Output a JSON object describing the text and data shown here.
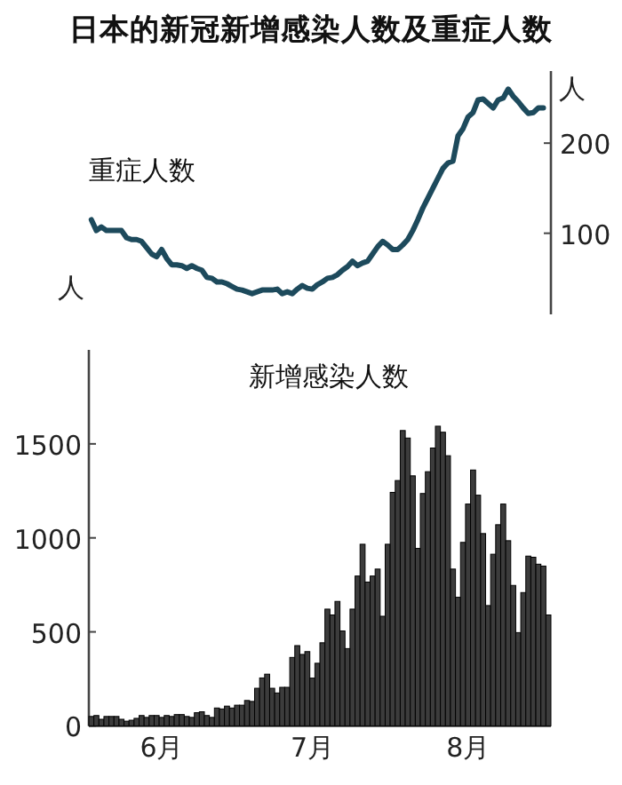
{
  "chart_data": [
    {
      "type": "line",
      "title": "日本的新冠新增感染人数及重症人数",
      "ylabel": "人",
      "categories": [
        null,
        null,
        null,
        null,
        null,
        null,
        null,
        null,
        null,
        null,
        null,
        null,
        null,
        null,
        null,
        null,
        null,
        null,
        null,
        null,
        null,
        null,
        null,
        null,
        null,
        null,
        null,
        null,
        null,
        null,
        null,
        null,
        null,
        null,
        null,
        null,
        null,
        null,
        null,
        null,
        null,
        null,
        null,
        null,
        null,
        null,
        null,
        null,
        null,
        null,
        null,
        null,
        null,
        null,
        null,
        null,
        null,
        null,
        null,
        null,
        null,
        null,
        null,
        null,
        null,
        null,
        null,
        null,
        null,
        null,
        null,
        null,
        null,
        null,
        null,
        null,
        null,
        null,
        null,
        null,
        null,
        null,
        null,
        null,
        null,
        null,
        null,
        null,
        null,
        null,
        null,
        null
      ],
      "tick_labels": "y",
      "ylim": [
        10,
        280
      ],
      "yticks": [
        100,
        200
      ],
      "series": [
        {
          "name": "重症人数",
          "color": "#1d4a5c",
          "values": [
            115,
            103,
            107,
            103,
            103,
            103,
            103,
            95,
            93,
            93,
            91,
            84,
            77,
            74,
            82,
            72,
            65,
            65,
            64,
            61,
            64,
            61,
            59,
            51,
            50,
            46,
            46,
            44,
            41,
            38,
            37,
            35,
            33,
            35,
            37,
            37,
            37,
            38,
            33,
            35,
            33,
            38,
            42,
            39,
            38,
            43,
            46,
            50,
            51,
            54,
            59,
            63,
            69,
            64,
            67,
            69,
            77,
            85,
            91,
            87,
            82,
            82,
            87,
            93,
            103,
            115,
            128,
            139,
            150,
            161,
            172,
            178,
            180,
            208,
            216,
            229,
            234,
            248,
            249,
            244,
            239,
            248,
            250,
            260,
            252,
            246,
            239,
            233,
            234,
            239,
            239,
            null
          ]
        }
      ]
    },
    {
      "type": "bar",
      "ylabel": "人",
      "categories": [
        null,
        null,
        null,
        null,
        null,
        null,
        null,
        null,
        null,
        null,
        null,
        null,
        null,
        null,
        "6月",
        null,
        null,
        null,
        null,
        null,
        null,
        null,
        null,
        null,
        null,
        null,
        null,
        null,
        null,
        null,
        null,
        null,
        null,
        null,
        null,
        null,
        null,
        null,
        null,
        null,
        null,
        null,
        null,
        null,
        "7月",
        null,
        null,
        null,
        null,
        null,
        null,
        null,
        null,
        null,
        null,
        null,
        null,
        null,
        null,
        null,
        null,
        null,
        null,
        null,
        null,
        null,
        null,
        null,
        null,
        null,
        null,
        null,
        null,
        null,
        null,
        "8月",
        null,
        null,
        null,
        null,
        null,
        null,
        null,
        null,
        null,
        null,
        null,
        null,
        null,
        null,
        null,
        null
      ],
      "ylim": [
        0,
        2000
      ],
      "yticks": [
        0,
        500,
        1000,
        1500
      ],
      "series": [
        {
          "name": "新增感染人数",
          "color": "#3c3c3c",
          "values": [
            50,
            55,
            35,
            50,
            50,
            50,
            35,
            25,
            30,
            40,
            55,
            45,
            55,
            55,
            45,
            55,
            50,
            60,
            60,
            50,
            45,
            70,
            75,
            55,
            45,
            95,
            90,
            105,
            95,
            110,
            110,
            135,
            130,
            200,
            255,
            275,
            200,
            175,
            205,
            205,
            364,
            427,
            380,
            395,
            254,
            333,
            442,
            621,
            590,
            662,
            505,
            411,
            621,
            797,
            966,
            765,
            797,
            834,
            583,
            966,
            1242,
            1305,
            1571,
            1531,
            1330,
            944,
            1236,
            1352,
            1478,
            1594,
            1562,
            1437,
            834,
            684,
            976,
            1180,
            1361,
            1227,
            1023,
            640,
            913,
            1070,
            1180,
            985,
            747,
            496,
            709,
            903,
            897,
            860,
            850,
            590
          ]
        }
      ]
    }
  ]
}
